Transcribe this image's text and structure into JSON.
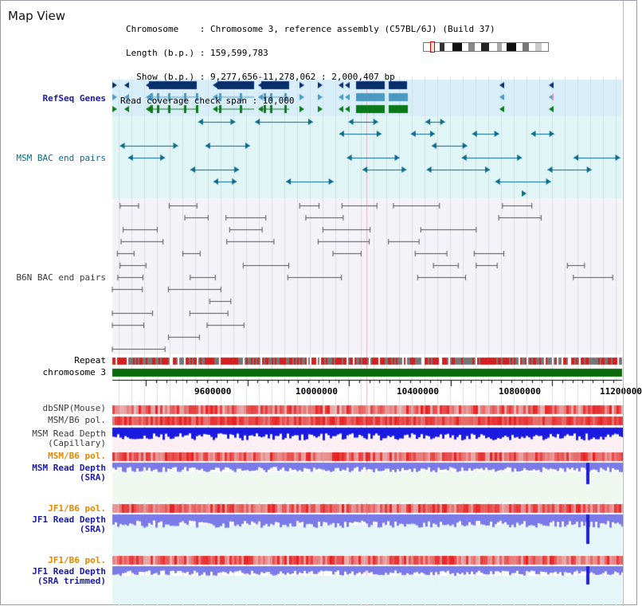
{
  "window": {
    "title": "Map View"
  },
  "info": {
    "chromosome_line": "Chromosome    : Chromosome 3, reference assembly (C57BL/6J) (Build 37)",
    "length_line": "Length (b.p.) : 159,599,783",
    "show_line": "  Show (b.p.) : 9,277,656-11,278,062 : 2,000,407 bp",
    "span_line": "Read coverage check span : 10,000"
  },
  "tracks": {
    "refseq_label": "RefSeq Genes",
    "msm_bac_label": "MSM BAC end pairs",
    "b6n_bac_label": "B6N BAC end pairs",
    "repeat_label": "Repeat",
    "chromosome_label": "chromosome 3",
    "dbsnp_label": "dbSNP(Mouse)",
    "msm_b6_pol_label": "MSM/B6 pol.",
    "msm_read_cap_label_1": "MSM Read Depth",
    "msm_read_cap_label_2": "(Capillary)",
    "msm_b6_pol2_label": "MSM/B6 pol.",
    "msm_read_sra_label_1": "MSM Read Depth",
    "msm_read_sra_label_2": "(SRA)",
    "jf1_b6_pol_label": "JF1/B6 pol.",
    "jf1_read_sra_label_1": "JF1 Read Depth",
    "jf1_read_sra_label_2": "(SRA)",
    "jf1_b6_pol2_label": "JF1/B6 pol.",
    "jf1_read_trim_label_1": "JF1 Read Depth",
    "jf1_read_trim_label_2": "(SRA trimmed)"
  },
  "axis": {
    "ticks": [
      "9600000",
      "10000000",
      "10400000",
      "10800000",
      "11200000"
    ]
  },
  "colors": {
    "refseq_band": "#d8eef8",
    "msm_bac_band": "#e0f6f6",
    "gene_dark": "#0b2f6b",
    "gene_mid": "#4a9ac4",
    "gene_green": "#0a7a1a",
    "bac_teal": "#0a6a88",
    "bac_gray": "#555555",
    "chromosome_green": "#0a6a0a",
    "depth_blue": "#1a1ae0",
    "depth_light_blue": "#7a7ae8",
    "pol_red": "#e83030",
    "orange_label": "#e08800",
    "label_blue": "#1a1aa8"
  }
}
